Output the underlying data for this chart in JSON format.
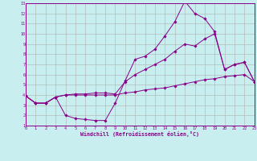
{
  "xlabel": "Windchill (Refroidissement éolien,°C)",
  "background_color": "#c8eef0",
  "line_color": "#880088",
  "grid_color": "#b0b0b0",
  "xlim": [
    0,
    23
  ],
  "ylim": [
    1,
    13
  ],
  "xticks": [
    0,
    1,
    2,
    3,
    4,
    5,
    6,
    7,
    8,
    9,
    10,
    11,
    12,
    13,
    14,
    15,
    16,
    17,
    18,
    19,
    20,
    21,
    22,
    23
  ],
  "yticks": [
    1,
    2,
    3,
    4,
    5,
    6,
    7,
    8,
    9,
    10,
    11,
    12,
    13
  ],
  "lines": [
    {
      "x": [
        0,
        1,
        2,
        3,
        4,
        5,
        6,
        7,
        8,
        9,
        10,
        11,
        12,
        13,
        14,
        15,
        16,
        17,
        18,
        19,
        20,
        21,
        22,
        23
      ],
      "y": [
        3.9,
        3.2,
        3.2,
        3.8,
        4.0,
        4.0,
        4.0,
        4.0,
        4.0,
        4.0,
        4.2,
        4.3,
        4.5,
        4.6,
        4.7,
        4.9,
        5.1,
        5.3,
        5.5,
        5.6,
        5.8,
        5.9,
        6.0,
        5.3
      ]
    },
    {
      "x": [
        0,
        1,
        2,
        3,
        4,
        5,
        6,
        7,
        8,
        9,
        10,
        11,
        12,
        13,
        14,
        15,
        16,
        17,
        18,
        19,
        20,
        21,
        22,
        23
      ],
      "y": [
        3.9,
        3.2,
        3.2,
        3.8,
        4.0,
        4.1,
        4.1,
        4.2,
        4.2,
        4.1,
        5.3,
        6.0,
        6.5,
        7.0,
        7.5,
        8.3,
        9.0,
        8.8,
        9.5,
        10.0,
        6.5,
        7.0,
        7.2,
        5.3
      ]
    },
    {
      "x": [
        0,
        1,
        2,
        3,
        4,
        5,
        6,
        7,
        8,
        9,
        10,
        11,
        12,
        13,
        14,
        15,
        16,
        17,
        18,
        19,
        20,
        21,
        22,
        23
      ],
      "y": [
        3.9,
        3.2,
        3.2,
        3.8,
        2.0,
        1.7,
        1.6,
        1.5,
        1.5,
        3.2,
        5.4,
        7.5,
        7.8,
        8.5,
        9.8,
        11.2,
        13.2,
        12.0,
        11.5,
        10.2,
        6.5,
        7.0,
        7.2,
        5.3
      ]
    }
  ]
}
